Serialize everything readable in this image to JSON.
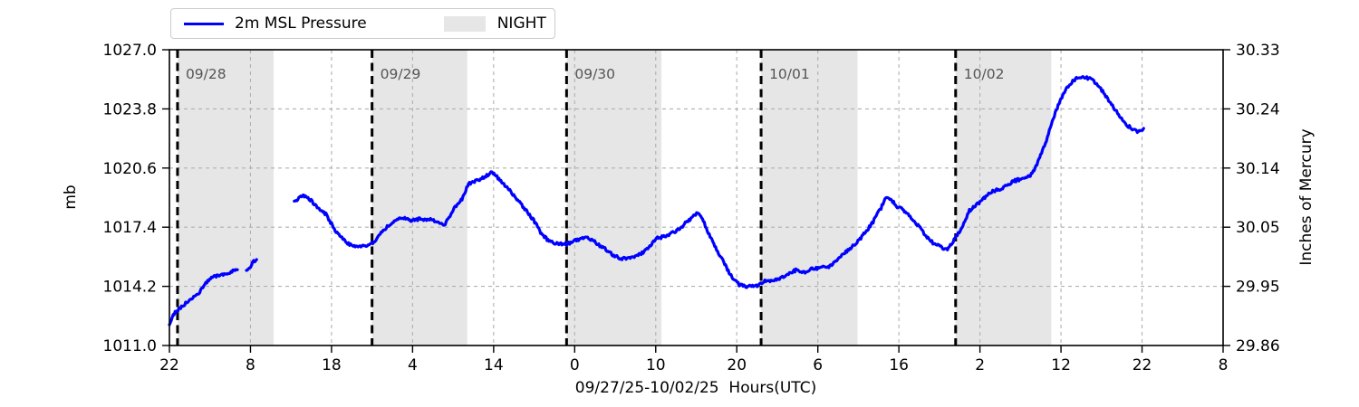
{
  "chart_data": {
    "type": "line",
    "xlabel": "09/27/25-10/02/25  Hours(UTC)",
    "ylabel_left": "mb",
    "ylabel_right": "Inches of Mercury",
    "legend": [
      "2m MSL Pressure",
      "NIGHT"
    ],
    "colors": {
      "line": "#0000ff",
      "night_band": "#e6e6e6",
      "grid": "#b0b0b0",
      "date_line": "#000000",
      "date_label": "#555555",
      "axis": "#000000"
    },
    "x_axis": {
      "hours_span": 130,
      "tick_interval_hours": 10,
      "tick_labels": [
        "22",
        "8",
        "18",
        "4",
        "14",
        "0",
        "10",
        "20",
        "6",
        "16",
        "2",
        "12",
        "22",
        "8"
      ],
      "start_time": "09/27/25 22:00 UTC"
    },
    "y_left": {
      "min": 1011.0,
      "max": 1027.0,
      "tick_labels": [
        "1027.0",
        "1023.8",
        "1020.6",
        "1017.4",
        "1014.2",
        "1011.0"
      ]
    },
    "y_right": {
      "tick_labels": [
        "30.33",
        "30.24",
        "30.14",
        "30.05",
        "29.95",
        "29.86"
      ]
    },
    "night_bands_hours": [
      [
        1.0,
        12.85
      ],
      [
        25.0,
        36.75
      ],
      [
        49.0,
        60.7
      ],
      [
        73.0,
        84.9
      ],
      [
        97.0,
        108.8
      ]
    ],
    "date_lines": [
      {
        "hour": 1.0,
        "label": "09/28"
      },
      {
        "hour": 25.0,
        "label": "09/29"
      },
      {
        "hour": 49.0,
        "label": "09/30"
      },
      {
        "hour": 73.0,
        "label": "10/01"
      },
      {
        "hour": 97.0,
        "label": "10/02"
      }
    ],
    "series": {
      "name": "2m MSL Pressure",
      "units": "mb",
      "segments": [
        [
          [
            0,
            1012.2
          ],
          [
            0.7,
            1012.8
          ],
          [
            1.5,
            1013.1
          ],
          [
            2.5,
            1013.5
          ],
          [
            3.5,
            1013.75
          ],
          [
            4.5,
            1014.35
          ],
          [
            5.3,
            1014.7
          ],
          [
            6.0,
            1014.8
          ],
          [
            7.0,
            1014.9
          ],
          [
            7.6,
            1015.0
          ],
          [
            8.4,
            1015.1
          ]
        ],
        [
          [
            9.5,
            1015.05
          ],
          [
            10.0,
            1015.3
          ],
          [
            10.4,
            1015.55
          ],
          [
            10.75,
            1015.65
          ]
        ],
        [
          [
            15.4,
            1018.75
          ],
          [
            16.3,
            1019.1
          ],
          [
            17.1,
            1019.0
          ],
          [
            18.0,
            1018.6
          ],
          [
            19.3,
            1018.1
          ],
          [
            20.8,
            1017.0
          ],
          [
            22.1,
            1016.5
          ],
          [
            23.5,
            1016.35
          ],
          [
            24.4,
            1016.4
          ],
          [
            25.1,
            1016.55
          ],
          [
            26.0,
            1017.0
          ],
          [
            27.0,
            1017.5
          ],
          [
            28.0,
            1017.8
          ],
          [
            28.8,
            1017.9
          ],
          [
            30.0,
            1017.75
          ],
          [
            31.0,
            1017.85
          ],
          [
            32.2,
            1017.8
          ],
          [
            33.1,
            1017.7
          ],
          [
            33.9,
            1017.45
          ],
          [
            35.0,
            1018.35
          ],
          [
            36.1,
            1018.9
          ],
          [
            36.9,
            1019.75
          ],
          [
            38.0,
            1019.95
          ],
          [
            38.9,
            1020.1
          ],
          [
            39.8,
            1020.4
          ],
          [
            40.9,
            1019.9
          ],
          [
            42.0,
            1019.4
          ],
          [
            43.1,
            1018.8
          ],
          [
            44.2,
            1018.2
          ],
          [
            45.3,
            1017.55
          ],
          [
            45.8,
            1017.1
          ],
          [
            46.7,
            1016.7
          ],
          [
            47.8,
            1016.5
          ],
          [
            49.15,
            1016.5
          ],
          [
            50.1,
            1016.7
          ],
          [
            51.2,
            1016.85
          ],
          [
            52.1,
            1016.75
          ],
          [
            53.1,
            1016.4
          ],
          [
            54.0,
            1016.15
          ],
          [
            54.7,
            1015.9
          ],
          [
            55.7,
            1015.72
          ],
          [
            56.6,
            1015.7
          ],
          [
            57.6,
            1015.8
          ],
          [
            58.8,
            1016.15
          ],
          [
            59.5,
            1016.5
          ],
          [
            60.2,
            1016.8
          ],
          [
            61.0,
            1016.9
          ],
          [
            62.6,
            1017.2
          ],
          [
            64.0,
            1017.75
          ],
          [
            64.8,
            1018.05
          ],
          [
            65.3,
            1018.2
          ],
          [
            66.0,
            1017.6
          ],
          [
            66.6,
            1017.0
          ],
          [
            67.5,
            1016.2
          ],
          [
            68.5,
            1015.4
          ],
          [
            69.4,
            1014.7
          ],
          [
            70.3,
            1014.3
          ],
          [
            71.0,
            1014.2
          ],
          [
            72.4,
            1014.2
          ],
          [
            73.2,
            1014.45
          ],
          [
            74.1,
            1014.5
          ],
          [
            75.5,
            1014.65
          ],
          [
            76.5,
            1014.9
          ],
          [
            77.4,
            1015.1
          ],
          [
            78.3,
            1014.95
          ],
          [
            79.3,
            1015.15
          ],
          [
            80.4,
            1015.2
          ],
          [
            81.6,
            1015.3
          ],
          [
            82.2,
            1015.6
          ],
          [
            83.2,
            1015.95
          ],
          [
            84.2,
            1016.35
          ],
          [
            85.2,
            1016.75
          ],
          [
            86.7,
            1017.6
          ],
          [
            87.8,
            1018.45
          ],
          [
            88.4,
            1019.05
          ],
          [
            89.0,
            1018.9
          ],
          [
            89.8,
            1018.5
          ],
          [
            90.1,
            1018.45
          ],
          [
            90.9,
            1018.2
          ],
          [
            92.0,
            1017.7
          ],
          [
            93.1,
            1017.05
          ],
          [
            94.2,
            1016.55
          ],
          [
            95.3,
            1016.3
          ],
          [
            96.0,
            1016.2
          ],
          [
            96.8,
            1016.7
          ],
          [
            97.2,
            1017.0
          ],
          [
            97.9,
            1017.45
          ],
          [
            98.7,
            1018.3
          ],
          [
            100.0,
            1018.75
          ],
          [
            101.2,
            1019.3
          ],
          [
            102.8,
            1019.5
          ],
          [
            104.2,
            1019.9
          ],
          [
            105.4,
            1020.05
          ],
          [
            106.1,
            1020.15
          ],
          [
            106.8,
            1020.6
          ],
          [
            107.6,
            1021.4
          ],
          [
            108.2,
            1022.1
          ],
          [
            108.7,
            1022.85
          ],
          [
            109.3,
            1023.6
          ],
          [
            110.1,
            1024.45
          ],
          [
            111.0,
            1025.1
          ],
          [
            111.9,
            1025.45
          ],
          [
            112.7,
            1025.55
          ],
          [
            113.8,
            1025.4
          ],
          [
            114.9,
            1024.9
          ],
          [
            116.0,
            1024.2
          ],
          [
            117.1,
            1023.5
          ],
          [
            118.2,
            1022.9
          ],
          [
            119.3,
            1022.6
          ],
          [
            119.9,
            1022.6
          ],
          [
            120.2,
            1022.75
          ]
        ]
      ]
    }
  }
}
